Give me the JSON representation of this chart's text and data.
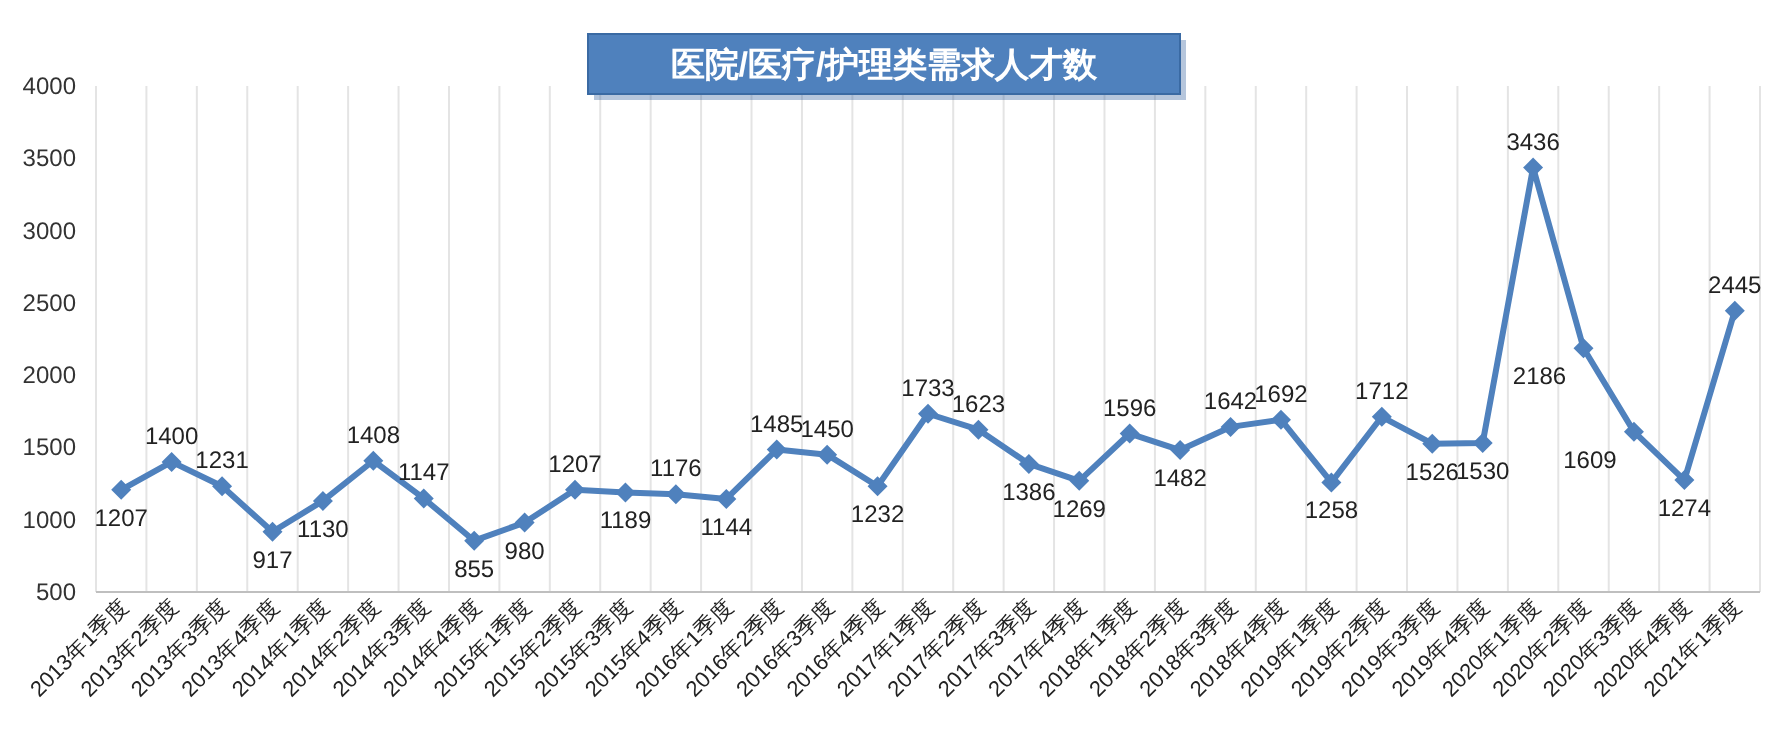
{
  "chart_data": {
    "type": "line",
    "title": "医院/医疗/护理类需求人才数",
    "categories": [
      "2013年1季度",
      "2013年2季度",
      "2013年3季度",
      "2013年4季度",
      "2014年1季度",
      "2014年2季度",
      "2014年3季度",
      "2014年4季度",
      "2015年1季度",
      "2015年2季度",
      "2015年3季度",
      "2015年4季度",
      "2016年1季度",
      "2016年2季度",
      "2016年3季度",
      "2016年4季度",
      "2017年1季度",
      "2017年2季度",
      "2017年3季度",
      "2017年4季度",
      "2018年1季度",
      "2018年2季度",
      "2018年3季度",
      "2018年4季度",
      "2019年1季度",
      "2019年2季度",
      "2019年3季度",
      "2019年4季度",
      "2020年1季度",
      "2020年2季度",
      "2020年3季度",
      "2020年4季度",
      "2021年1季度"
    ],
    "series": [
      {
        "color": "#4f81bd",
        "values": [
          1207,
          1400,
          1231,
          917,
          1130,
          1408,
          1147,
          855,
          980,
          1207,
          1189,
          1176,
          1144,
          1485,
          1450,
          1232,
          1733,
          1623,
          1386,
          1269,
          1596,
          1482,
          1642,
          1692,
          1258,
          1712,
          1526,
          1530,
          3436,
          2186,
          1609,
          1274,
          2445
        ]
      }
    ],
    "ylim": [
      500,
      4000
    ],
    "yticks": [
      500,
      1000,
      1500,
      2000,
      2500,
      3000,
      3500,
      4000
    ],
    "grid": "x",
    "marker": "diamond",
    "line_style": "solid",
    "data_labels": true
  }
}
